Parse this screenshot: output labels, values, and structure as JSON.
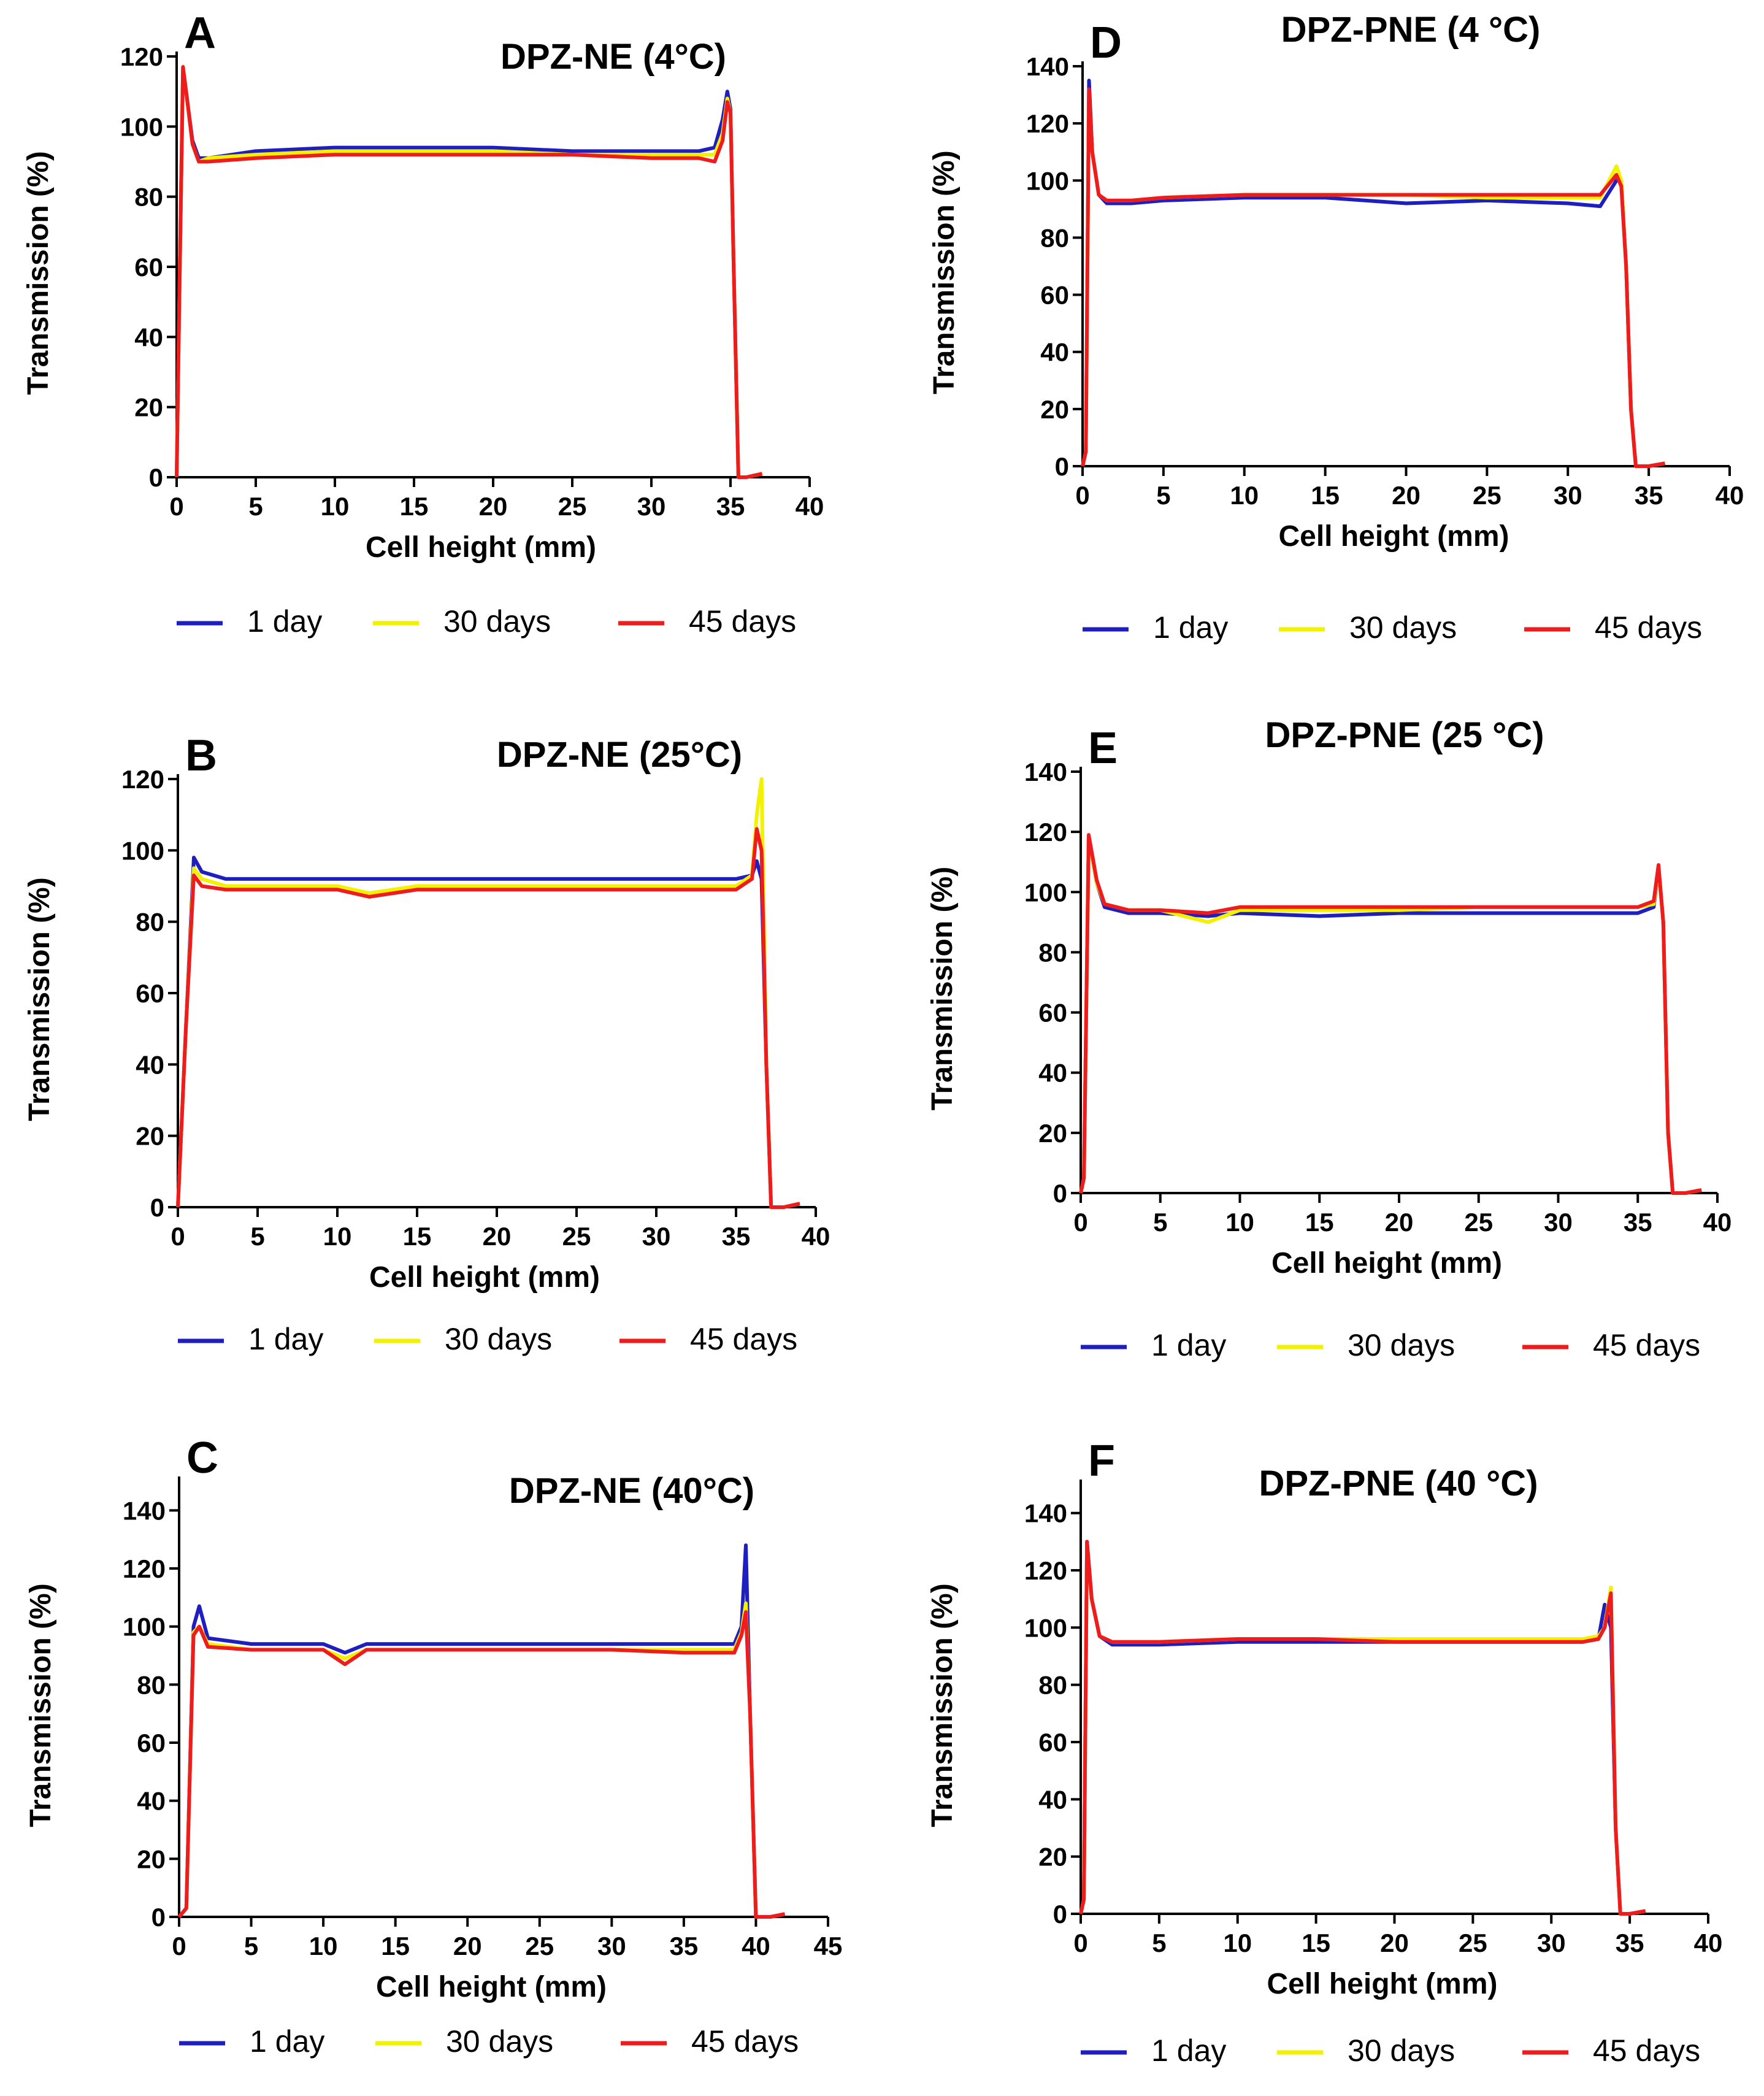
{
  "series_colors": {
    "1 day": "#1f1fbf",
    "30 days": "#f2f200",
    "45 days": "#ee1c1c"
  },
  "chart_data": [
    {
      "panel": "A",
      "type": "line",
      "title": "DPZ-NE (4°C)",
      "xlabel": "Cell height (mm)",
      "ylabel": "Transmission (%)",
      "xlim": [
        0,
        40
      ],
      "ylim": [
        0,
        120
      ],
      "xticks": [
        0,
        5,
        10,
        15,
        20,
        25,
        30,
        35,
        40
      ],
      "yticks": [
        0,
        20,
        40,
        60,
        80,
        100,
        120
      ],
      "legend": [
        "1 day",
        "30 days",
        "45 days"
      ],
      "series": [
        {
          "name": "1 day",
          "x": [
            0,
            0.2,
            0.4,
            0.6,
            1,
            1.4,
            2,
            5,
            10,
            15,
            20,
            25,
            30,
            33,
            34,
            34.5,
            34.8,
            35,
            35.2,
            35.5,
            36,
            37
          ],
          "y": [
            0,
            60,
            115,
            110,
            96,
            91,
            91,
            93,
            94,
            94,
            94,
            93,
            93,
            93,
            94,
            102,
            110,
            105,
            60,
            0,
            0,
            1
          ]
        },
        {
          "name": "30 days",
          "x": [
            0,
            0.2,
            0.4,
            0.6,
            1,
            1.4,
            2,
            5,
            10,
            15,
            20,
            25,
            30,
            33,
            34,
            34.5,
            34.8,
            35,
            35.2,
            35.5,
            36,
            37
          ],
          "y": [
            0,
            60,
            117,
            110,
            95,
            90,
            91,
            92,
            93,
            93,
            93,
            92,
            92,
            92,
            92,
            98,
            108,
            104,
            60,
            0,
            0,
            1
          ]
        },
        {
          "name": "45 days",
          "x": [
            0,
            0.2,
            0.4,
            0.6,
            1,
            1.4,
            2,
            5,
            10,
            15,
            20,
            25,
            30,
            33,
            34,
            34.5,
            34.8,
            35,
            35.2,
            35.5,
            36,
            37
          ],
          "y": [
            0,
            60,
            117,
            110,
            95,
            90,
            90,
            91,
            92,
            92,
            92,
            92,
            91,
            91,
            90,
            96,
            107,
            104,
            60,
            0,
            0,
            1
          ]
        }
      ]
    },
    {
      "panel": "B",
      "type": "line",
      "title": "DPZ-NE (25°C)",
      "xlabel": "Cell height (mm)",
      "ylabel": "Transmission (%)",
      "xlim": [
        0,
        40
      ],
      "ylim": [
        0,
        120
      ],
      "xticks": [
        0,
        5,
        10,
        15,
        20,
        25,
        30,
        35,
        40
      ],
      "yticks": [
        0,
        20,
        40,
        60,
        80,
        100,
        120
      ],
      "legend": [
        "1 day",
        "30 days",
        "45 days"
      ],
      "series": [
        {
          "name": "1 day",
          "x": [
            0,
            0.5,
            1,
            1.5,
            3,
            5,
            10,
            12,
            15,
            20,
            25,
            30,
            35,
            36,
            36.3,
            36.6,
            36.9,
            37.2,
            38,
            39
          ],
          "y": [
            0,
            50,
            98,
            94,
            92,
            92,
            92,
            92,
            92,
            92,
            92,
            92,
            92,
            93,
            97,
            92,
            40,
            0,
            0,
            1
          ]
        },
        {
          "name": "30 days",
          "x": [
            0,
            0.5,
            1,
            1.5,
            3,
            5,
            10,
            12,
            15,
            20,
            25,
            30,
            35,
            36,
            36.3,
            36.6,
            36.9,
            37.2,
            38,
            39
          ],
          "y": [
            0,
            50,
            95,
            92,
            90,
            90,
            90,
            88,
            90,
            90,
            90,
            90,
            90,
            93,
            110,
            120,
            40,
            0,
            0,
            1
          ]
        },
        {
          "name": "45 days",
          "x": [
            0,
            0.5,
            1,
            1.5,
            3,
            5,
            10,
            12,
            15,
            20,
            25,
            30,
            35,
            36,
            36.3,
            36.6,
            36.9,
            37.2,
            38,
            39
          ],
          "y": [
            0,
            50,
            93,
            90,
            89,
            89,
            89,
            87,
            89,
            89,
            89,
            89,
            89,
            92,
            106,
            100,
            40,
            0,
            0,
            1
          ]
        }
      ]
    },
    {
      "panel": "C",
      "type": "line",
      "title": "DPZ-NE (40°C)",
      "xlabel": "Cell height (mm)",
      "ylabel": "Transmission (%)",
      "xlim": [
        0,
        45
      ],
      "ylim": [
        0,
        150
      ],
      "xticks": [
        0,
        5,
        10,
        15,
        20,
        25,
        30,
        35,
        40,
        45
      ],
      "yticks": [
        0,
        20,
        40,
        60,
        80,
        100,
        120,
        140
      ],
      "legend": [
        "1 day",
        "30 days",
        "45 days"
      ],
      "series": [
        {
          "name": "1 day",
          "x": [
            0,
            0.5,
            1,
            1.4,
            2,
            5,
            10,
            11.5,
            13,
            15,
            20,
            25,
            30,
            35,
            38.5,
            39,
            39.3,
            39.6,
            40,
            41,
            42
          ],
          "y": [
            0,
            3,
            100,
            107,
            96,
            94,
            94,
            91,
            94,
            94,
            94,
            94,
            94,
            94,
            94,
            100,
            128,
            70,
            0,
            0,
            1
          ]
        },
        {
          "name": "30 days",
          "x": [
            0,
            0.5,
            1,
            1.4,
            2,
            5,
            10,
            11.5,
            13,
            15,
            20,
            25,
            30,
            35,
            38.5,
            39,
            39.3,
            39.6,
            40,
            41,
            42
          ],
          "y": [
            0,
            3,
            98,
            100,
            94,
            92,
            92,
            89,
            92,
            92,
            92,
            92,
            92,
            92,
            92,
            98,
            108,
            70,
            0,
            0,
            1
          ]
        },
        {
          "name": "45 days",
          "x": [
            0,
            0.5,
            1,
            1.4,
            2,
            5,
            10,
            11.5,
            13,
            15,
            20,
            25,
            30,
            35,
            38.5,
            39,
            39.3,
            39.6,
            40,
            41,
            42
          ],
          "y": [
            0,
            3,
            97,
            100,
            93,
            92,
            92,
            87,
            92,
            92,
            92,
            92,
            92,
            91,
            91,
            97,
            105,
            70,
            0,
            0,
            1
          ]
        }
      ]
    },
    {
      "panel": "D",
      "type": "line",
      "title": "DPZ-PNE (4 °C)",
      "xlabel": "Cell height (mm)",
      "ylabel": "Transmission (%)",
      "xlim": [
        0,
        40
      ],
      "ylim": [
        0,
        140
      ],
      "xticks": [
        0,
        5,
        10,
        15,
        20,
        25,
        30,
        35,
        40
      ],
      "yticks": [
        0,
        20,
        40,
        60,
        80,
        100,
        120,
        140
      ],
      "legend": [
        "1 day",
        "30 days",
        "45 days"
      ],
      "series": [
        {
          "name": "1 day",
          "x": [
            0,
            0.2,
            0.4,
            0.6,
            1,
            1.5,
            3,
            5,
            10,
            15,
            20,
            25,
            30,
            32,
            33,
            33.3,
            33.6,
            33.9,
            34.2,
            35,
            36
          ],
          "y": [
            0,
            5,
            135,
            110,
            95,
            92,
            92,
            93,
            94,
            94,
            92,
            93,
            92,
            91,
            100,
            100,
            70,
            20,
            0,
            0,
            1
          ]
        },
        {
          "name": "30 days",
          "x": [
            0,
            0.2,
            0.4,
            0.6,
            1,
            1.5,
            3,
            5,
            10,
            15,
            20,
            25,
            30,
            32,
            33,
            33.3,
            33.6,
            33.9,
            34.2,
            35,
            36
          ],
          "y": [
            0,
            5,
            130,
            110,
            95,
            93,
            93,
            94,
            95,
            95,
            95,
            94,
            94,
            94,
            105,
            100,
            70,
            20,
            0,
            0,
            1
          ]
        },
        {
          "name": "45 days",
          "x": [
            0,
            0.2,
            0.4,
            0.6,
            1,
            1.5,
            3,
            5,
            10,
            15,
            20,
            25,
            30,
            32,
            33,
            33.3,
            33.6,
            33.9,
            34.2,
            35,
            36
          ],
          "y": [
            0,
            5,
            132,
            110,
            95,
            93,
            93,
            94,
            95,
            95,
            95,
            95,
            95,
            95,
            102,
            98,
            70,
            20,
            0,
            0,
            1
          ]
        }
      ]
    },
    {
      "panel": "E",
      "type": "line",
      "title": "DPZ-PNE (25 °C)",
      "xlabel": "Cell height (mm)",
      "ylabel": "Transmission (%)",
      "xlim": [
        0,
        40
      ],
      "ylim": [
        0,
        140
      ],
      "xticks": [
        0,
        5,
        10,
        15,
        20,
        25,
        30,
        35,
        40
      ],
      "yticks": [
        0,
        20,
        40,
        60,
        80,
        100,
        120,
        140
      ],
      "legend": [
        "1 day",
        "30 days",
        "45 days"
      ],
      "series": [
        {
          "name": "1 day",
          "x": [
            0,
            0.2,
            0.5,
            1,
            1.5,
            3,
            5,
            8,
            10,
            15,
            20,
            25,
            30,
            35,
            36,
            36.3,
            36.6,
            36.9,
            37.2,
            38,
            39
          ],
          "y": [
            0,
            5,
            118,
            103,
            95,
            93,
            93,
            92,
            93,
            92,
            93,
            93,
            93,
            93,
            95,
            108,
            90,
            20,
            0,
            0,
            1
          ]
        },
        {
          "name": "30 days",
          "x": [
            0,
            0.2,
            0.5,
            1,
            1.5,
            3,
            5,
            8,
            10,
            15,
            20,
            25,
            30,
            35,
            36,
            36.3,
            36.6,
            36.9,
            37.2,
            38,
            39
          ],
          "y": [
            0,
            5,
            118,
            103,
            96,
            94,
            94,
            90,
            94,
            94,
            94,
            95,
            95,
            95,
            96,
            108,
            90,
            20,
            0,
            0,
            1
          ]
        },
        {
          "name": "45 days",
          "x": [
            0,
            0.2,
            0.5,
            1,
            1.5,
            3,
            5,
            8,
            10,
            15,
            20,
            25,
            30,
            35,
            36,
            36.3,
            36.6,
            36.9,
            37.2,
            38,
            39
          ],
          "y": [
            0,
            5,
            119,
            104,
            96,
            94,
            94,
            93,
            95,
            95,
            95,
            95,
            95,
            95,
            97,
            109,
            90,
            20,
            0,
            0,
            1
          ]
        }
      ]
    },
    {
      "panel": "F",
      "type": "line",
      "title": "DPZ-PNE (40 °C)",
      "xlabel": "Cell height (mm)",
      "ylabel": "Transmission (%)",
      "xlim": [
        0,
        40
      ],
      "ylim": [
        0,
        150
      ],
      "xticks": [
        0,
        5,
        10,
        15,
        20,
        25,
        30,
        35,
        40
      ],
      "yticks": [
        0,
        20,
        40,
        60,
        80,
        100,
        120,
        140
      ],
      "legend": [
        "1 day",
        "30 days",
        "45 days"
      ],
      "series": [
        {
          "name": "1 day",
          "x": [
            0,
            0.2,
            0.4,
            0.7,
            1.2,
            2,
            5,
            10,
            15,
            20,
            25,
            30,
            32,
            33,
            33.4,
            33.8,
            34.1,
            34.4,
            35,
            36
          ],
          "y": [
            0,
            5,
            130,
            110,
            97,
            94,
            94,
            95,
            95,
            95,
            95,
            95,
            95,
            96,
            108,
            100,
            30,
            0,
            0,
            1
          ]
        },
        {
          "name": "30 days",
          "x": [
            0,
            0.2,
            0.4,
            0.7,
            1.2,
            2,
            5,
            10,
            15,
            20,
            25,
            30,
            32,
            33,
            33.4,
            33.8,
            34.1,
            34.4,
            35,
            36
          ],
          "y": [
            0,
            5,
            128,
            110,
            97,
            95,
            95,
            96,
            96,
            96,
            96,
            96,
            96,
            97,
            100,
            114,
            30,
            0,
            0,
            1
          ]
        },
        {
          "name": "45 days",
          "x": [
            0,
            0.2,
            0.4,
            0.7,
            1.2,
            2,
            5,
            10,
            15,
            20,
            25,
            30,
            32,
            33,
            33.4,
            33.8,
            34.1,
            34.4,
            35,
            36
          ],
          "y": [
            0,
            5,
            130,
            110,
            97,
            95,
            95,
            96,
            96,
            95,
            95,
            95,
            95,
            96,
            100,
            112,
            30,
            0,
            0,
            1
          ]
        }
      ]
    }
  ]
}
